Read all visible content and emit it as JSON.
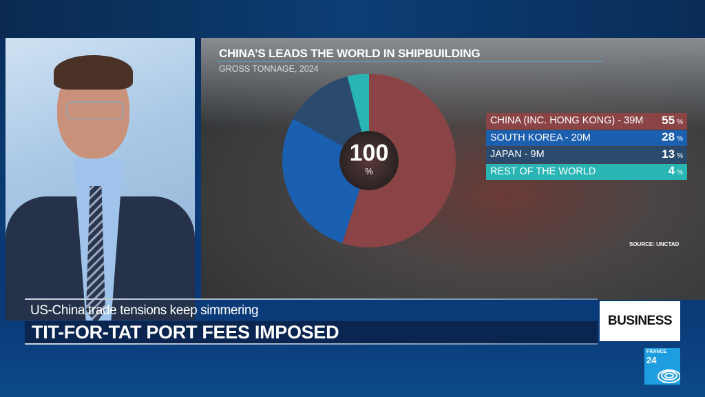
{
  "chart_data": {
    "type": "pie",
    "title": "CHINA’S LEADS THE WORLD IN SHIPBUILDING",
    "subtitle": "GROSS TONNAGE, 2024",
    "center_label": {
      "value": "100",
      "unit": "%"
    },
    "source": "SOURCE: UNCTAD",
    "slices": [
      {
        "label": "CHINA (INC. HONG KONG) - 39M",
        "value": 55,
        "color": "#8b4446"
      },
      {
        "label": "SOUTH KOREA - 20M",
        "value": 28,
        "color": "#1a5fb0"
      },
      {
        "label": "JAPAN - 9M",
        "value": 13,
        "color": "#2a4a6e"
      },
      {
        "label": "REST OF THE WORLD",
        "value": 4,
        "color": "#2ab5b5"
      }
    ],
    "pct_unit": "%",
    "legend_placement": "right"
  },
  "lower_third": {
    "kicker": "US-China trade tensions keep simmering",
    "headline": "TIT-FOR-TAT PORT FEES IMPOSED",
    "section": "BUSINESS"
  },
  "logo": {
    "line1": "FRANCE",
    "line2": "24",
    "color": "#1e9ee0"
  }
}
